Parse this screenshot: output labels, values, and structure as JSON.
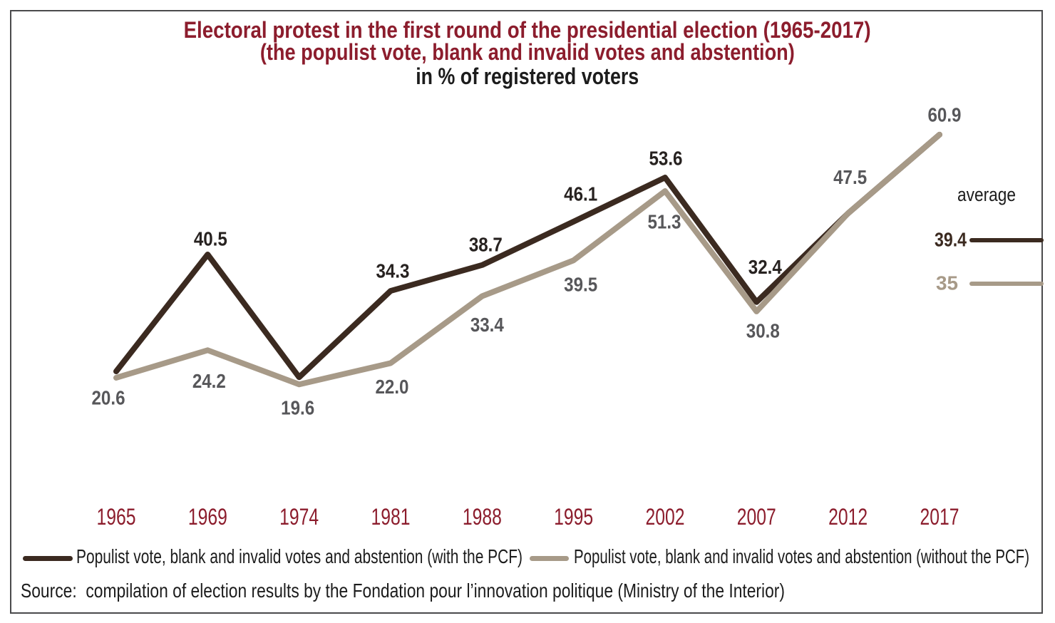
{
  "title": {
    "line1": "Electoral protest in the first round of the presidential election (1965-2017)",
    "line2": "(the populist vote, blank and invalid votes and abstention)",
    "line3": "in % of registered voters"
  },
  "chart_data": {
    "type": "line",
    "categories": [
      "1965",
      "1969",
      "1974",
      "1981",
      "1988",
      "1995",
      "2002",
      "2007",
      "2012",
      "2017"
    ],
    "series": [
      {
        "name": "Populist vote, blank and invalid votes and abstention (with the PCF)",
        "color": "#3B2A20",
        "values": [
          20.6,
          40.5,
          19.6,
          34.3,
          38.7,
          46.1,
          53.6,
          32.4,
          47.5,
          60.9
        ],
        "average": 39.4,
        "average_display": "39.4"
      },
      {
        "name": "Populist vote, blank and invalid votes and abstention (without the PCF)",
        "color": "#A79A88",
        "values": [
          20.6,
          24.2,
          19.6,
          22.0,
          33.4,
          39.5,
          51.3,
          30.8,
          47.5,
          60.9
        ],
        "average": 35,
        "average_display": "35"
      }
    ],
    "average_label": "average",
    "ylabel": "",
    "xlabel": "",
    "grid": false,
    "legend_position": "bottom"
  },
  "colors": {
    "title_red": "#8C1D2D",
    "year_red": "#8C1D2D",
    "dark_label": "#272220",
    "gray_label": "#57575A",
    "text_black": "#1c1c1c",
    "border": "#4a4a4c"
  },
  "source": "Source:  compilation of election results by the Fondation pour l’innovation politique (Ministry of the Interior)"
}
